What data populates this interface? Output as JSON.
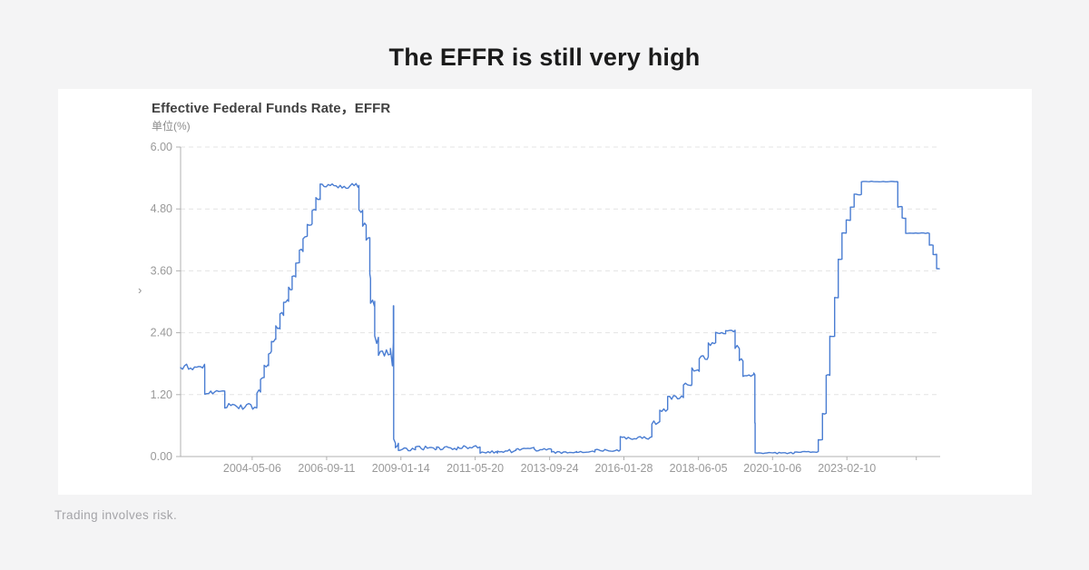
{
  "page": {
    "title": "The EFFR is still very high",
    "disclaimer": "Trading involves risk."
  },
  "icons": {
    "chevron_right": "›"
  },
  "chart_data": {
    "type": "line",
    "title": "Effective Federal Funds Rate，EFFR",
    "unit_label": "单位(%)",
    "legend": "none",
    "grid": "horizontal-dashed",
    "line_color": "#4a7dd2",
    "axis_color": "#b0b0b0",
    "grid_color": "#e4e4e4",
    "tick_label_color": "#999999",
    "ylim": [
      0,
      6
    ],
    "yticks": [
      "0.00",
      "1.20",
      "2.40",
      "3.60",
      "4.80",
      "6.00"
    ],
    "x_domain": [
      "2002-02-01",
      "2026-01-20"
    ],
    "xticks": [
      {
        "date": "2004-05-06",
        "label": "2004-05-06"
      },
      {
        "date": "2006-09-11",
        "label": "2006-09-11"
      },
      {
        "date": "2009-01-14",
        "label": "2009-01-14"
      },
      {
        "date": "2011-05-20",
        "label": "2011-05-20"
      },
      {
        "date": "2013-09-24",
        "label": "2013-09-24"
      },
      {
        "date": "2016-01-28",
        "label": "2016-01-28"
      },
      {
        "date": "2018-06-05",
        "label": "2018-06-05"
      },
      {
        "date": "2020-10-06",
        "label": "2020-10-06"
      },
      {
        "date": "2023-02-10",
        "label": "2023-02-10"
      },
      {
        "date": "2025-04-20",
        "label": ""
      }
    ],
    "series": [
      {
        "name": "EFFR",
        "points_format": [
          "date",
          "value_pct",
          "daily_noise_amplitude_pct"
        ],
        "points": [
          [
            "2002-02-01",
            1.74,
            0.06
          ],
          [
            "2002-11-06",
            1.24,
            0.04
          ],
          [
            "2003-06-25",
            0.97,
            0.06
          ],
          [
            "2004-06-30",
            1.26,
            0.035
          ],
          [
            "2004-08-10",
            1.52,
            0.035
          ],
          [
            "2004-09-21",
            1.76,
            0.035
          ],
          [
            "2004-11-10",
            2.01,
            0.035
          ],
          [
            "2004-12-14",
            2.25,
            0.035
          ],
          [
            "2005-02-02",
            2.5,
            0.035
          ],
          [
            "2005-03-22",
            2.76,
            0.035
          ],
          [
            "2005-05-03",
            3.01,
            0.035
          ],
          [
            "2005-06-30",
            3.26,
            0.035
          ],
          [
            "2005-08-09",
            3.51,
            0.035
          ],
          [
            "2005-09-20",
            3.76,
            0.035
          ],
          [
            "2005-11-01",
            4.01,
            0.035
          ],
          [
            "2005-12-13",
            4.25,
            0.035
          ],
          [
            "2006-01-31",
            4.5,
            0.035
          ],
          [
            "2006-03-28",
            4.76,
            0.035
          ],
          [
            "2006-05-10",
            5.0,
            0.035
          ],
          [
            "2006-06-29",
            5.25,
            0.05
          ],
          [
            "2007-09-18",
            4.76,
            0.06
          ],
          [
            "2007-10-31",
            4.51,
            0.06
          ],
          [
            "2007-12-11",
            4.25,
            0.07
          ],
          [
            "2008-01-22",
            3.51,
            0.07
          ],
          [
            "2008-01-30",
            2.99,
            0.08
          ],
          [
            "2008-03-18",
            2.26,
            0.09
          ],
          [
            "2008-04-30",
            2.0,
            0.07
          ],
          [
            "2008-09-15",
            1.95,
            0.3
          ],
          [
            "2008-10-20",
            2.92,
            0
          ],
          [
            "2008-10-23",
            0.32,
            0.1
          ],
          [
            "2008-11-12",
            0.25,
            0.08
          ],
          [
            "2008-12-16",
            0.13,
            0.05
          ],
          [
            "2009-07-01",
            0.17,
            0.04
          ],
          [
            "2010-03-01",
            0.16,
            0.035
          ],
          [
            "2010-11-01",
            0.18,
            0.03
          ],
          [
            "2011-07-15",
            0.09,
            0.03
          ],
          [
            "2012-02-01",
            0.11,
            0.035
          ],
          [
            "2012-09-01",
            0.15,
            0.03
          ],
          [
            "2013-04-01",
            0.13,
            0.025
          ],
          [
            "2013-10-15",
            0.08,
            0.02
          ],
          [
            "2014-08-01",
            0.09,
            0.02
          ],
          [
            "2015-03-01",
            0.12,
            0.02
          ],
          [
            "2015-12-17",
            0.36,
            0.03
          ],
          [
            "2016-12-15",
            0.65,
            0.04
          ],
          [
            "2017-03-16",
            0.9,
            0.04
          ],
          [
            "2017-06-15",
            1.15,
            0.04
          ],
          [
            "2017-12-14",
            1.41,
            0.04
          ],
          [
            "2018-03-22",
            1.68,
            0.045
          ],
          [
            "2018-06-14",
            1.91,
            0.045
          ],
          [
            "2018-09-27",
            2.18,
            0.04
          ],
          [
            "2018-12-20",
            2.4,
            0.02
          ],
          [
            "2019-04-15",
            2.43,
            0.025
          ],
          [
            "2019-08-01",
            2.12,
            0.04
          ],
          [
            "2019-09-19",
            1.88,
            0.05
          ],
          [
            "2019-10-31",
            1.57,
            0.025
          ],
          [
            "2020-03-04",
            1.6,
            0.02
          ],
          [
            "2020-03-16",
            0.65,
            0
          ],
          [
            "2020-03-19",
            0.07,
            0.015
          ],
          [
            "2021-06-17",
            0.09,
            0.008
          ],
          [
            "2022-03-17",
            0.33,
            0.008
          ],
          [
            "2022-05-05",
            0.83,
            0.008
          ],
          [
            "2022-06-16",
            1.58,
            0.008
          ],
          [
            "2022-07-28",
            2.33,
            0.008
          ],
          [
            "2022-09-22",
            3.08,
            0.008
          ],
          [
            "2022-11-03",
            3.83,
            0.008
          ],
          [
            "2022-12-15",
            4.33,
            0.008
          ],
          [
            "2023-02-02",
            4.58,
            0.008
          ],
          [
            "2023-03-23",
            4.83,
            0.008
          ],
          [
            "2023-05-04",
            5.08,
            0.008
          ],
          [
            "2023-07-27",
            5.33,
            0.006
          ],
          [
            "2024-09-19",
            4.84,
            0.006
          ],
          [
            "2024-11-08",
            4.62,
            0.006
          ],
          [
            "2024-12-19",
            4.33,
            0.006
          ],
          [
            "2025-09-18",
            4.1,
            0.006
          ],
          [
            "2025-10-30",
            3.92,
            0.006
          ],
          [
            "2025-12-10",
            3.64,
            0.004
          ],
          [
            "2026-01-10",
            3.64,
            0
          ]
        ]
      }
    ]
  }
}
